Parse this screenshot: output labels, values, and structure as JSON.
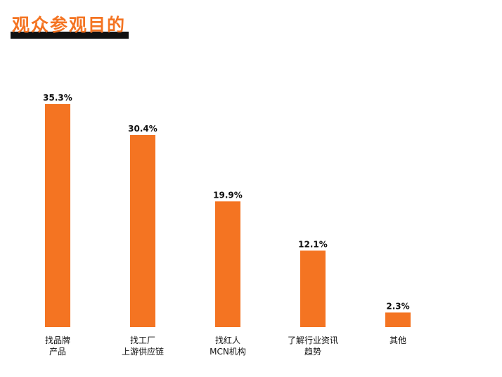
{
  "title": "观众参观目的",
  "colors": {
    "accent": "#f47422",
    "text": "#111111",
    "background": "#ffffff"
  },
  "chart_data": {
    "type": "bar",
    "title": "观众参观目的",
    "xlabel": "",
    "ylabel": "",
    "categories": [
      [
        "找品牌",
        "产品"
      ],
      [
        "找工厂",
        "上游供应链"
      ],
      [
        "找红人",
        "MCN机构"
      ],
      [
        "了解行业资讯",
        "趋势"
      ],
      [
        "其他"
      ]
    ],
    "values": [
      35.3,
      30.4,
      19.9,
      12.1,
      2.3
    ],
    "value_labels": [
      "35.3%",
      "30.4%",
      "19.9%",
      "12.1%",
      "2.3%"
    ],
    "ylim": [
      0,
      35.3
    ],
    "grid": false,
    "legend": "none",
    "bar_color": "#f47422"
  }
}
